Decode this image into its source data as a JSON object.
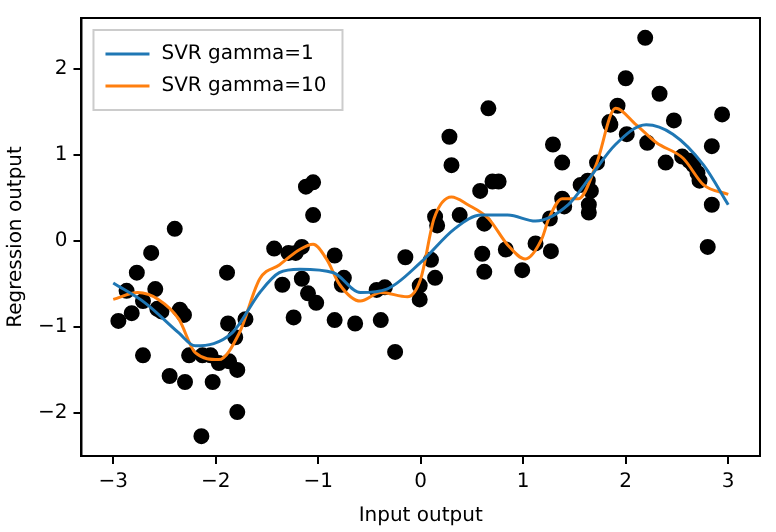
{
  "chart_data": {
    "type": "scatter",
    "xlabel": "Input output",
    "ylabel": "Regression output",
    "xlim": [
      -3.31,
      3.31
    ],
    "ylim": [
      -2.5,
      2.59
    ],
    "xticks": [
      -3,
      -2,
      -1,
      0,
      1,
      2,
      3
    ],
    "yticks": [
      -2,
      -1,
      0,
      1,
      2
    ],
    "grid": false,
    "legend": "top left",
    "series": [
      {
        "color": "#000000",
        "marker": "circle",
        "x": [
          -2.95,
          -2.87,
          -2.82,
          -2.77,
          -2.71,
          -2.71,
          -2.63,
          -2.59,
          -2.57,
          -2.53,
          -2.45,
          -2.4,
          -2.35,
          -2.31,
          -2.3,
          -2.26,
          -2.14,
          -2.13,
          -2.05,
          -2.03,
          -1.97,
          -1.89,
          -1.88,
          -1.87,
          -1.81,
          -1.79,
          -1.79,
          -1.71,
          -1.43,
          -1.35,
          -1.29,
          -1.24,
          -1.22,
          -1.16,
          -1.16,
          -1.12,
          -1.1,
          -1.05,
          -1.05,
          -1.02,
          -0.84,
          -0.84,
          -0.77,
          -0.75,
          -0.64,
          -0.43,
          -0.39,
          -0.35,
          -0.25,
          -0.15,
          -0.01,
          -0.01,
          0.1,
          0.14,
          0.14,
          0.16,
          0.28,
          0.3,
          0.38,
          0.58,
          0.6,
          0.62,
          0.62,
          0.66,
          0.7,
          0.76,
          0.83,
          0.99,
          1.12,
          1.26,
          1.27,
          1.29,
          1.38,
          1.38,
          1.4,
          1.56,
          1.63,
          1.64,
          1.64,
          1.66,
          1.72,
          1.84,
          1.85,
          1.92,
          2.0,
          2.01,
          2.19,
          2.21,
          2.33,
          2.39,
          2.47,
          2.55,
          2.62,
          2.66,
          2.7,
          2.72,
          2.8,
          2.84,
          2.84,
          2.94
        ],
        "values": [
          -0.93,
          -0.58,
          -0.84,
          -0.37,
          -0.7,
          -1.33,
          -0.14,
          -0.56,
          -0.79,
          -0.82,
          -1.57,
          0.14,
          -0.8,
          -0.86,
          -1.64,
          -1.33,
          -2.27,
          -1.33,
          -1.33,
          -1.64,
          -1.42,
          -0.37,
          -0.96,
          -1.4,
          -1.12,
          -1.5,
          -1.99,
          -0.91,
          -0.09,
          -0.51,
          -0.14,
          -0.89,
          -0.14,
          -0.07,
          -0.44,
          0.63,
          -0.61,
          0.68,
          0.3,
          -0.72,
          -0.17,
          -0.92,
          -0.51,
          -0.43,
          -0.96,
          -0.57,
          -0.92,
          -0.54,
          -1.29,
          -0.19,
          -0.52,
          -0.68,
          -0.22,
          0.28,
          -0.43,
          0.18,
          1.21,
          0.88,
          0.3,
          0.58,
          -0.15,
          0.2,
          -0.36,
          1.54,
          0.69,
          0.69,
          -0.1,
          -0.34,
          -0.03,
          0.26,
          -0.12,
          1.12,
          0.91,
          0.49,
          0.4,
          0.65,
          0.7,
          0.42,
          0.33,
          0.58,
          0.91,
          1.38,
          1.35,
          1.57,
          1.89,
          1.24,
          2.36,
          1.14,
          1.71,
          0.91,
          1.4,
          0.98,
          0.93,
          0.88,
          0.79,
          0.7,
          -0.07,
          1.1,
          0.42,
          1.47
        ]
      },
      {
        "type": "line",
        "name": "SVR gamma=1",
        "color": "#1f77b4",
        "x": [
          -3.0,
          -2.69,
          -2.36,
          -2.2,
          -1.84,
          -1.57,
          -1.38,
          -1.18,
          -0.85,
          -0.59,
          -0.33,
          0.0,
          0.33,
          0.59,
          0.85,
          1.12,
          1.44,
          1.64,
          1.9,
          2.2,
          2.46,
          2.76,
          3.0
        ],
        "values": [
          -0.49,
          -0.72,
          -1.07,
          -1.22,
          -1.07,
          -0.6,
          -0.37,
          -0.33,
          -0.37,
          -0.6,
          -0.56,
          -0.25,
          0.14,
          0.3,
          0.3,
          0.23,
          0.42,
          0.72,
          1.12,
          1.35,
          1.24,
          0.88,
          0.42
        ]
      },
      {
        "type": "line",
        "name": "SVR gamma=10",
        "color": "#ff7f0e",
        "x": [
          -3.0,
          -2.76,
          -2.56,
          -2.36,
          -2.2,
          -1.97,
          -1.77,
          -1.57,
          -1.38,
          -1.18,
          -1.05,
          -0.92,
          -0.79,
          -0.59,
          -0.39,
          -0.13,
          0.0,
          0.13,
          0.3,
          0.46,
          0.66,
          0.85,
          1.02,
          1.18,
          1.25,
          1.38,
          1.54,
          1.71,
          1.9,
          2.1,
          2.3,
          2.56,
          2.76,
          3.0
        ],
        "values": [
          -0.68,
          -0.6,
          -0.68,
          -0.91,
          -1.3,
          -1.38,
          -1.07,
          -0.44,
          -0.28,
          -0.1,
          -0.04,
          -0.21,
          -0.51,
          -0.7,
          -0.6,
          -0.65,
          -0.44,
          0.26,
          0.51,
          0.42,
          0.26,
          -0.05,
          -0.21,
          0.02,
          0.26,
          0.49,
          0.49,
          0.88,
          1.54,
          1.35,
          1.14,
          0.96,
          0.65,
          0.54
        ]
      }
    ]
  }
}
